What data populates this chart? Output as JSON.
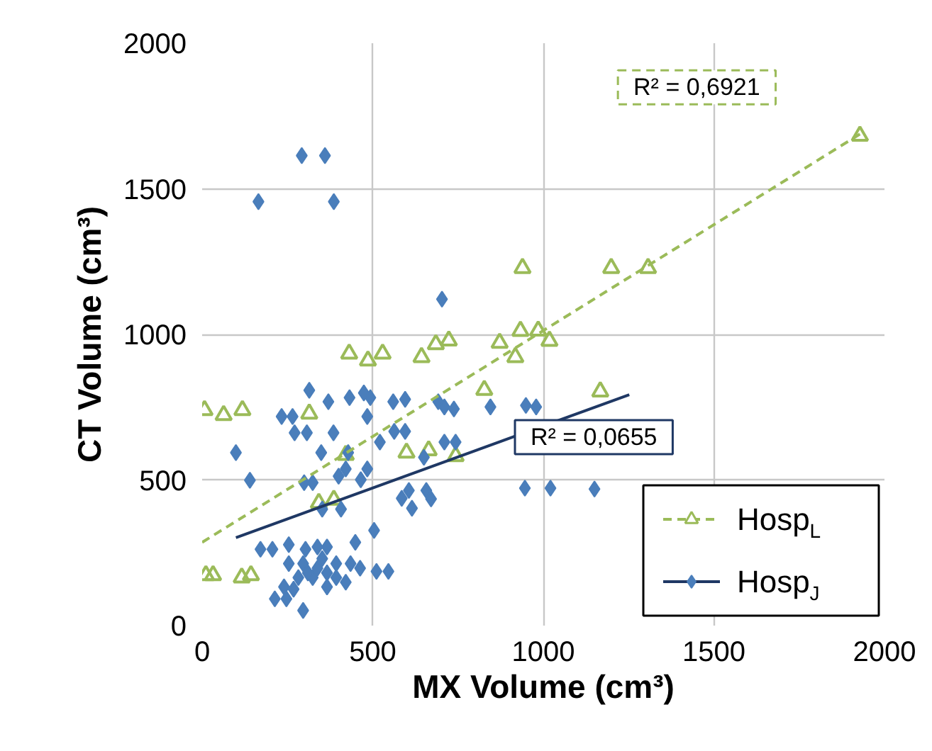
{
  "chart_data": {
    "type": "scatter",
    "xlabel": "MX Volume (cm³)",
    "ylabel": "CT Volume (cm³)",
    "xlim": [
      0,
      2000
    ],
    "ylim": [
      0,
      2000
    ],
    "xticks": [
      0,
      500,
      1000,
      1500,
      2000
    ],
    "yticks": [
      0,
      500,
      1000,
      1500,
      2000
    ],
    "grid": true,
    "legend": "bottom right",
    "series": [
      {
        "name": "Hosp$_{L}$",
        "color": "#9bbb59",
        "marker": "triangle",
        "line_style": "dashed",
        "x": [
          939,
          933,
          985,
          1018,
          872,
          918,
          431,
          486,
          529,
          643,
          685,
          723,
          1928,
          1199,
          1307,
          1167,
          7,
          63,
          118,
          314,
          827,
          599,
          664,
          743,
          421,
          342,
          386,
          11,
          32,
          116,
          143
        ],
        "values": [
          1228,
          1012,
          1013,
          978,
          971,
          922,
          934,
          910,
          934,
          922,
          966,
          979,
          1682,
          1228,
          1228,
          804,
          740,
          723,
          740,
          728,
          809,
          594,
          602,
          582,
          586,
          421,
          432,
          173,
          173,
          165,
          173
        ]
      },
      {
        "name": "Hosp$_{J}$",
        "color": "#4a7ebb",
        "marker": "diamond",
        "line_style": "solid",
        "x": [
          292,
          360,
          165,
          386,
          703,
          1150,
          314,
          370,
          432,
          474,
          493,
          484,
          560,
          595,
          692,
          710,
          738,
          845,
          949,
          979,
          233,
          265,
          271,
          307,
          385,
          563,
          595,
          99,
          349,
          428,
          521,
          710,
          743,
          650,
          421,
          484,
          400,
          465,
          299,
          324,
          140,
          946,
          1021,
          585,
          606,
          657,
          671,
          615,
          407,
          352,
          504,
          171,
          206,
          254,
          303,
          338,
          366,
          449,
          254,
          296,
          352,
          393,
          435,
          463,
          511,
          546,
          282,
          324,
          366,
          393,
          421,
          240,
          268,
          213,
          247,
          296,
          366,
          338,
          310
        ],
        "values": [
          1614,
          1614,
          1456,
          1456,
          1121,
          469,
          808,
          769,
          783,
          799,
          783,
          718,
          769,
          777,
          769,
          751,
          744,
          751,
          756,
          751,
          718,
          718,
          662,
          662,
          662,
          667,
          667,
          594,
          594,
          594,
          630,
          630,
          630,
          578,
          538,
          538,
          513,
          501,
          491,
          491,
          499,
          472,
          472,
          437,
          464,
          464,
          435,
          403,
          400,
          400,
          327,
          262,
          262,
          278,
          262,
          270,
          270,
          286,
          213,
          213,
          230,
          213,
          213,
          197,
          186,
          186,
          165,
          165,
          181,
          165,
          149,
          133,
          125,
          92,
          92,
          52,
          133,
          197,
          181
        ]
      },
      {
        "type": "line",
        "color": "#9bbb59",
        "line_style": "dashed",
        "x": [
          0,
          1928
        ],
        "values": [
          286,
          1688
        ]
      },
      {
        "type": "line",
        "color": "#1f3864",
        "line_style": "solid",
        "x": [
          99,
          1252
        ],
        "values": [
          302,
          793
        ]
      }
    ],
    "annotations": [
      "R² = 0,6921",
      "R² = 0,0655"
    ]
  }
}
